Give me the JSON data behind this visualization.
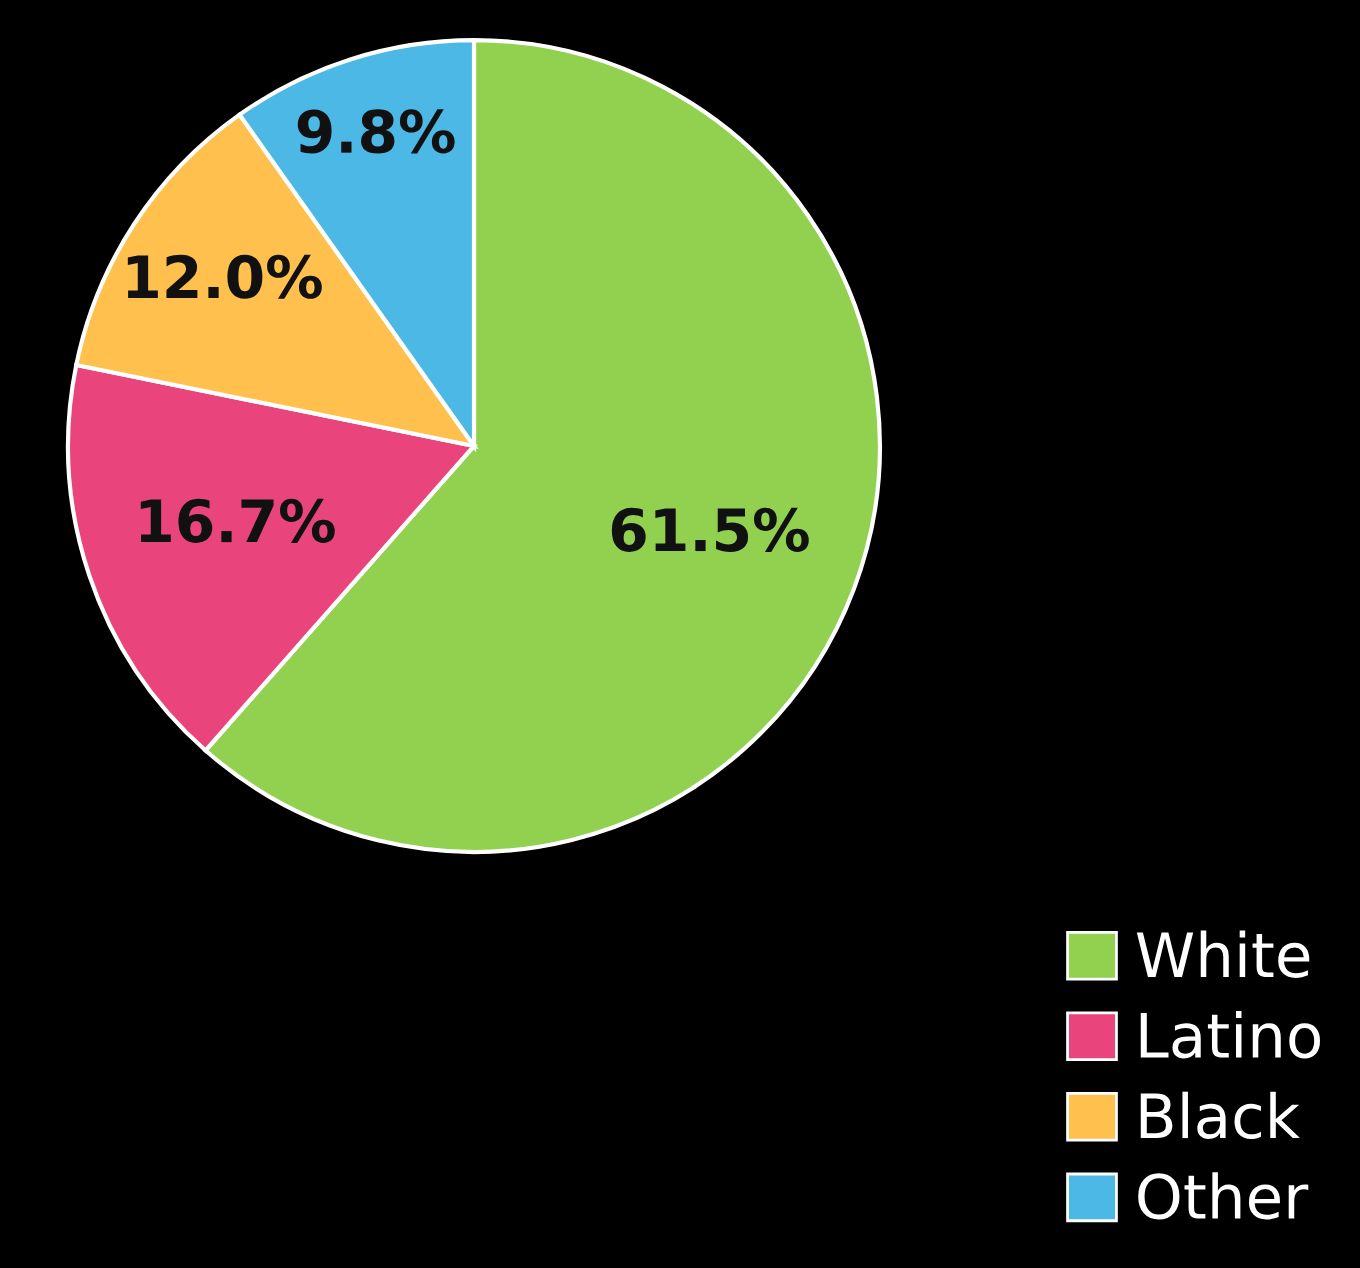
{
  "chart_data": {
    "type": "pie",
    "categories": [
      "White",
      "Latino",
      "Black",
      "Other"
    ],
    "values": [
      61.5,
      16.7,
      12.0,
      9.8
    ],
    "colors": [
      "#92d050",
      "#e9457c",
      "#ffc04d",
      "#4bb8e6"
    ],
    "value_labels": [
      "61.5%",
      "16.7%",
      "12.0%",
      "9.8%"
    ],
    "legend": "bottom right"
  }
}
